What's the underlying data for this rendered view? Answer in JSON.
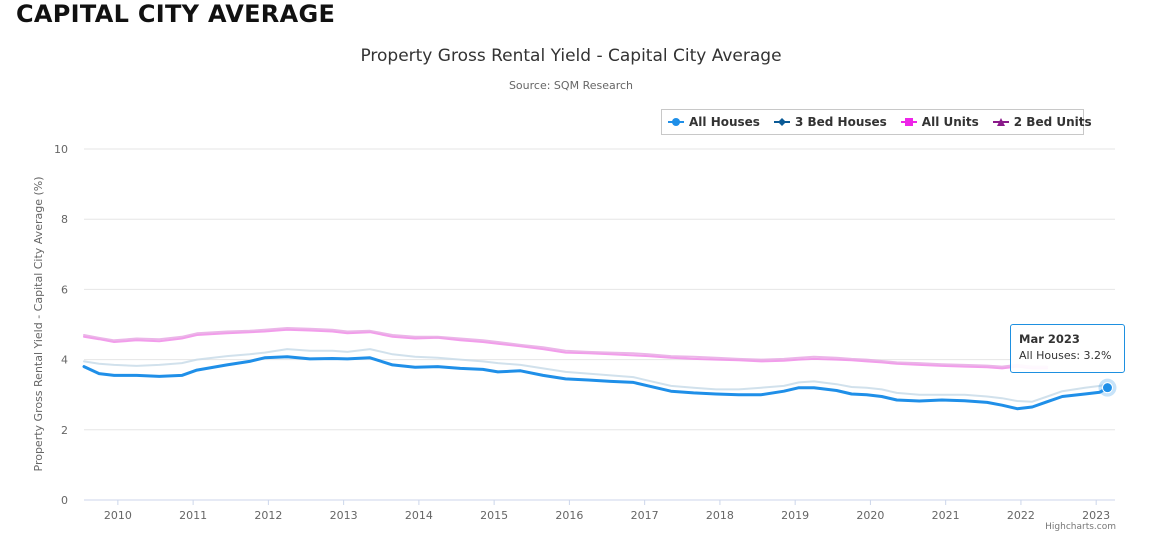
{
  "page": {
    "heading": "CAPITAL CITY AVERAGE"
  },
  "chart_data": {
    "type": "line",
    "title": "Property Gross Rental Yield - Capital City Average",
    "subtitle": "Source: SQM Research",
    "ylabel": "Property Gross Rental Yield - Capital City Average (%)",
    "xlabel": "",
    "ylim": [
      0,
      10
    ],
    "yticks": [
      "0",
      "2",
      "4",
      "6",
      "8",
      "10"
    ],
    "xlim": [
      2009.6,
      2023.3
    ],
    "xticks": [
      "2010",
      "2011",
      "2012",
      "2013",
      "2014",
      "2015",
      "2016",
      "2017",
      "2018",
      "2019",
      "2020",
      "2021",
      "2022",
      "2023"
    ],
    "grid": true,
    "legend_position": "top-right",
    "series": [
      {
        "name": "All Houses",
        "color": "#1f8fe8",
        "marker": "circle",
        "x": [
          2009.6,
          2009.8,
          2010.0,
          2010.3,
          2010.6,
          2010.9,
          2011.1,
          2011.5,
          2011.8,
          2012.0,
          2012.3,
          2012.6,
          2012.9,
          2013.1,
          2013.4,
          2013.7,
          2014.0,
          2014.3,
          2014.6,
          2014.9,
          2015.1,
          2015.4,
          2015.7,
          2016.0,
          2016.3,
          2016.6,
          2016.9,
          2017.1,
          2017.4,
          2017.7,
          2018.0,
          2018.3,
          2018.6,
          2018.9,
          2019.1,
          2019.3,
          2019.6,
          2019.8,
          2020.0,
          2020.2,
          2020.4,
          2020.7,
          2021.0,
          2021.3,
          2021.6,
          2021.8,
          2022.0,
          2022.2,
          2022.4,
          2022.6,
          2022.9,
          2023.1,
          2023.2
        ],
        "values": [
          3.8,
          3.6,
          3.55,
          3.55,
          3.52,
          3.55,
          3.7,
          3.85,
          3.95,
          4.05,
          4.08,
          4.02,
          4.03,
          4.02,
          4.05,
          3.85,
          3.78,
          3.8,
          3.75,
          3.72,
          3.65,
          3.68,
          3.55,
          3.45,
          3.42,
          3.38,
          3.35,
          3.25,
          3.1,
          3.05,
          3.02,
          3.0,
          3.0,
          3.1,
          3.2,
          3.2,
          3.12,
          3.02,
          3.0,
          2.95,
          2.85,
          2.82,
          2.85,
          2.83,
          2.78,
          2.7,
          2.6,
          2.65,
          2.8,
          2.95,
          3.02,
          3.07,
          3.2
        ]
      },
      {
        "name": "3 Bed Houses",
        "color": "#c9dce9",
        "marker": "diamond",
        "x": [
          2009.6,
          2009.8,
          2010.0,
          2010.3,
          2010.6,
          2010.9,
          2011.1,
          2011.5,
          2011.8,
          2012.0,
          2012.3,
          2012.6,
          2012.9,
          2013.1,
          2013.4,
          2013.7,
          2014.0,
          2014.3,
          2014.6,
          2014.9,
          2015.1,
          2015.4,
          2015.7,
          2016.0,
          2016.3,
          2016.6,
          2016.9,
          2017.1,
          2017.4,
          2017.7,
          2018.0,
          2018.3,
          2018.6,
          2018.9,
          2019.1,
          2019.3,
          2019.6,
          2019.8,
          2020.0,
          2020.2,
          2020.4,
          2020.7,
          2021.0,
          2021.3,
          2021.6,
          2021.8,
          2022.0,
          2022.2,
          2022.4,
          2022.6,
          2022.9,
          2023.1,
          2023.2
        ],
        "values": [
          3.95,
          3.88,
          3.85,
          3.82,
          3.85,
          3.9,
          4.0,
          4.1,
          4.15,
          4.2,
          4.3,
          4.25,
          4.25,
          4.22,
          4.3,
          4.15,
          4.08,
          4.05,
          4.0,
          3.95,
          3.9,
          3.85,
          3.75,
          3.65,
          3.6,
          3.55,
          3.5,
          3.4,
          3.25,
          3.2,
          3.15,
          3.15,
          3.2,
          3.25,
          3.35,
          3.38,
          3.3,
          3.22,
          3.2,
          3.15,
          3.05,
          3.0,
          3.0,
          3.0,
          2.95,
          2.9,
          2.82,
          2.8,
          2.95,
          3.1,
          3.2,
          3.25,
          3.3
        ]
      },
      {
        "name": "All Units",
        "color": "#f08ce8",
        "marker": "square",
        "x": [
          2009.6,
          2009.8,
          2010.0,
          2010.3,
          2010.6,
          2010.9,
          2011.1,
          2011.5,
          2011.8,
          2012.0,
          2012.3,
          2012.6,
          2012.9,
          2013.1,
          2013.4,
          2013.7,
          2014.0,
          2014.3,
          2014.6,
          2014.9,
          2015.1,
          2015.4,
          2015.7,
          2016.0,
          2016.3,
          2016.6,
          2016.9,
          2017.1,
          2017.4,
          2017.7,
          2018.0,
          2018.3,
          2018.6,
          2018.9,
          2019.1,
          2019.3,
          2019.6,
          2019.8,
          2020.0,
          2020.2,
          2020.4,
          2020.7,
          2021.0,
          2021.3,
          2021.6,
          2021.8,
          2022.0,
          2022.2,
          2022.4
        ],
        "values": [
          4.65,
          4.58,
          4.5,
          4.55,
          4.52,
          4.6,
          4.7,
          4.75,
          4.78,
          4.8,
          4.85,
          4.83,
          4.8,
          4.75,
          4.78,
          4.65,
          4.6,
          4.62,
          4.55,
          4.5,
          4.45,
          4.38,
          4.3,
          4.2,
          4.18,
          4.15,
          4.12,
          4.1,
          4.05,
          4.02,
          4.0,
          3.98,
          3.95,
          3.97,
          4.0,
          4.02,
          4.0,
          3.98,
          3.95,
          3.92,
          3.88,
          3.85,
          3.82,
          3.8,
          3.78,
          3.75,
          3.8,
          3.75,
          3.75
        ]
      },
      {
        "name": "2 Bed Units",
        "color": "#e7a8e4",
        "marker": "triangle",
        "x": [
          2009.6,
          2009.8,
          2010.0,
          2010.3,
          2010.6,
          2010.9,
          2011.1,
          2011.5,
          2011.8,
          2012.0,
          2012.3,
          2012.6,
          2012.9,
          2013.1,
          2013.4,
          2013.7,
          2014.0,
          2014.3,
          2014.6,
          2014.9,
          2015.1,
          2015.4,
          2015.7,
          2016.0,
          2016.3,
          2016.6,
          2016.9,
          2017.1,
          2017.4,
          2017.7,
          2018.0,
          2018.3,
          2018.6,
          2018.9,
          2019.1,
          2019.3,
          2019.6,
          2019.8,
          2020.0,
          2020.2,
          2020.4,
          2020.7,
          2021.0,
          2021.3,
          2021.6,
          2021.8,
          2022.0,
          2022.2,
          2022.4
        ],
        "values": [
          4.7,
          4.62,
          4.55,
          4.6,
          4.58,
          4.65,
          4.75,
          4.8,
          4.82,
          4.85,
          4.9,
          4.88,
          4.85,
          4.8,
          4.82,
          4.7,
          4.65,
          4.65,
          4.6,
          4.55,
          4.5,
          4.42,
          4.35,
          4.25,
          4.22,
          4.2,
          4.18,
          4.15,
          4.1,
          4.08,
          4.05,
          4.02,
          4.0,
          4.02,
          4.05,
          4.08,
          4.05,
          4.02,
          4.0,
          3.96,
          3.92,
          3.9,
          3.87,
          3.85,
          3.83,
          3.8,
          3.85,
          3.8,
          3.8
        ]
      }
    ],
    "legend": {
      "items": [
        {
          "label": "All Houses",
          "color": "#1f8fe8",
          "marker": "circle"
        },
        {
          "label": "3 Bed Houses",
          "color": "#0b5a96",
          "marker": "diamond"
        },
        {
          "label": "All Units",
          "color": "#ee25e8",
          "marker": "square"
        },
        {
          "label": "2 Bed Units",
          "color": "#8a1a8a",
          "marker": "triangle"
        }
      ]
    },
    "tooltip": {
      "date": "Mar 2023",
      "text": "All Houses: 3.2%",
      "x": 2023.2,
      "y": 3.2,
      "border_color": "#1e90e0"
    },
    "credits": "Highcharts.com"
  }
}
